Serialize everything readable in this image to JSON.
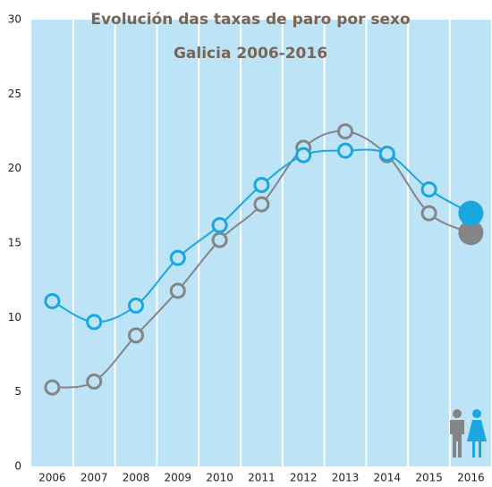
{
  "chart_data": {
    "type": "line",
    "title": "Evolución das taxas de paro por sexo",
    "subtitle": "Galicia 2006-2016",
    "categories": [
      "2006",
      "2007",
      "2008",
      "2009",
      "2010",
      "2011",
      "2012",
      "2013",
      "2014",
      "2015",
      "2016"
    ],
    "series": [
      {
        "color": "#858585",
        "values": [
          5.3,
          5.7,
          8.8,
          11.8,
          15.2,
          17.6,
          21.4,
          22.5,
          20.9,
          17.0,
          15.7
        ]
      },
      {
        "color": "#1aa6e1",
        "values": [
          11.1,
          9.7,
          10.8,
          14.0,
          16.2,
          18.9,
          20.9,
          21.2,
          21.0,
          18.6,
          17.0
        ]
      }
    ],
    "ylim": [
      0,
      30
    ],
    "yticks": [
      0,
      5,
      10,
      15,
      20,
      25,
      30
    ],
    "grid": false
  }
}
